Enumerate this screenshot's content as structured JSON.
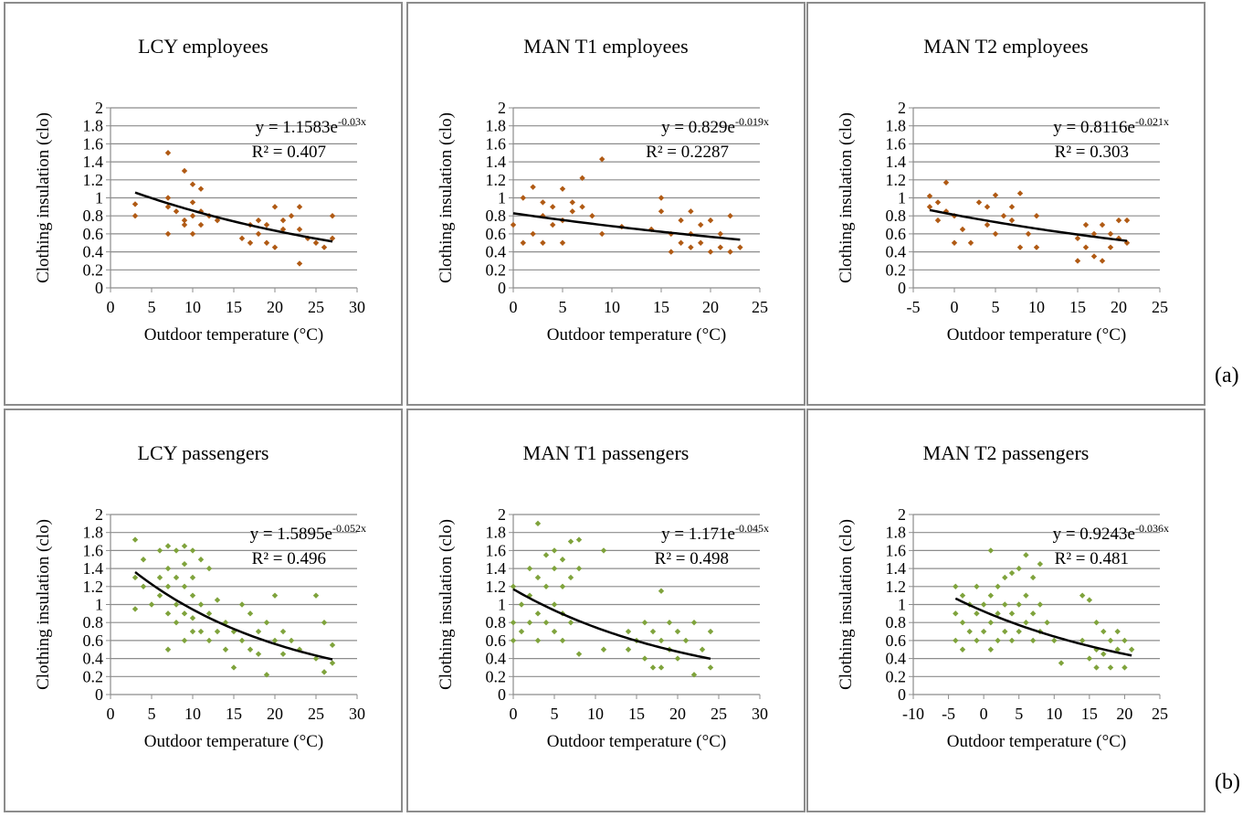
{
  "panel_labels": [
    "(a)",
    "(b)"
  ],
  "chart_data": [
    {
      "type": "scatter",
      "title": "LCY employees",
      "x_label": "Outdoor temperature (°C)",
      "y_label": "Clothing insulation (clo)",
      "color": "#b05a14",
      "grid": true,
      "xlim": [
        0,
        30
      ],
      "xticks": [
        0,
        5,
        10,
        15,
        20,
        25,
        30
      ],
      "ylim": [
        0,
        2
      ],
      "yticks": [
        0,
        0.2,
        0.4,
        0.6,
        0.8,
        1,
        1.2,
        1.4,
        1.6,
        1.8,
        2
      ],
      "x": [
        3,
        3,
        7,
        7,
        7,
        7,
        8,
        9,
        9,
        9,
        10,
        10,
        10,
        10,
        11,
        11,
        11,
        12,
        13,
        16,
        17,
        17,
        18,
        18,
        19,
        19,
        20,
        20,
        21,
        21,
        22,
        23,
        23,
        23,
        24,
        25,
        26,
        27,
        27
      ],
      "values": [
        0.93,
        0.8,
        1.5,
        1.0,
        0.6,
        0.9,
        0.85,
        1.3,
        0.75,
        0.7,
        1.15,
        0.95,
        0.8,
        0.6,
        1.1,
        0.85,
        0.7,
        0.8,
        0.75,
        0.55,
        0.7,
        0.5,
        0.75,
        0.6,
        0.5,
        0.7,
        0.9,
        0.45,
        0.75,
        0.65,
        0.8,
        0.9,
        0.65,
        0.27,
        0.55,
        0.5,
        0.45,
        0.8,
        0.55
      ],
      "trendline": {
        "a": 1.1583,
        "b": -0.03,
        "x_range": [
          3,
          27
        ],
        "equation": "y = 1.1583e",
        "exponent": "-0.03x",
        "r_squared": "R² = 0.407"
      }
    },
    {
      "type": "scatter",
      "title": "MAN T1 employees",
      "x_label": "Outdoor temperature (°C)",
      "y_label": "Clothing insulation (clo)",
      "color": "#b05a14",
      "grid": true,
      "xlim": [
        0,
        25
      ],
      "xticks": [
        0,
        5,
        10,
        15,
        20,
        25
      ],
      "ylim": [
        0,
        2
      ],
      "yticks": [
        0,
        0.2,
        0.4,
        0.6,
        0.8,
        1,
        1.2,
        1.4,
        1.6,
        1.8,
        2
      ],
      "x": [
        0,
        1,
        1,
        2,
        2,
        3,
        3,
        3,
        4,
        4,
        5,
        5,
        5,
        6,
        6,
        7,
        7,
        8,
        9,
        9,
        11,
        14,
        15,
        15,
        16,
        16,
        17,
        17,
        18,
        18,
        18,
        19,
        19,
        20,
        20,
        21,
        21,
        22,
        22,
        23
      ],
      "values": [
        0.7,
        1.0,
        0.5,
        1.12,
        0.6,
        0.95,
        0.8,
        0.5,
        0.9,
        0.7,
        1.1,
        0.75,
        0.5,
        0.95,
        0.85,
        1.22,
        0.9,
        0.8,
        1.43,
        0.6,
        0.68,
        0.65,
        1.0,
        0.85,
        0.6,
        0.4,
        0.75,
        0.5,
        0.85,
        0.6,
        0.45,
        0.7,
        0.5,
        0.75,
        0.4,
        0.6,
        0.45,
        0.8,
        0.4,
        0.45
      ],
      "trendline": {
        "a": 0.829,
        "b": -0.019,
        "x_range": [
          0,
          23
        ],
        "equation": "y = 0.829e",
        "exponent": "-0.019x",
        "r_squared": "R² = 0.2287"
      }
    },
    {
      "type": "scatter",
      "title": "MAN T2 employees",
      "x_label": "Outdoor temperature (°C)",
      "y_label": "Clothing insulation (clo)",
      "color": "#b05a14",
      "grid": true,
      "xlim": [
        -5,
        25
      ],
      "xticks": [
        -5,
        0,
        5,
        10,
        15,
        20,
        25
      ],
      "ylim": [
        0,
        2
      ],
      "yticks": [
        0,
        0.2,
        0.4,
        0.6,
        0.8,
        1,
        1.2,
        1.4,
        1.6,
        1.8,
        2
      ],
      "x": [
        -3,
        -3,
        -2,
        -2,
        -1,
        -1,
        0,
        0,
        1,
        2,
        3,
        4,
        4,
        5,
        5,
        6,
        7,
        7,
        8,
        8,
        9,
        10,
        10,
        15,
        15,
        16,
        16,
        17,
        17,
        18,
        18,
        19,
        19,
        20,
        20,
        21,
        21
      ],
      "values": [
        1.02,
        0.9,
        0.95,
        0.75,
        1.17,
        0.85,
        0.8,
        0.5,
        0.65,
        0.5,
        0.95,
        0.9,
        0.7,
        1.03,
        0.6,
        0.8,
        0.9,
        0.75,
        1.05,
        0.45,
        0.6,
        0.8,
        0.45,
        0.55,
        0.3,
        0.7,
        0.45,
        0.6,
        0.35,
        0.7,
        0.3,
        0.6,
        0.45,
        0.75,
        0.55,
        0.5,
        0.75
      ],
      "trendline": {
        "a": 0.8116,
        "b": -0.021,
        "x_range": [
          -3,
          21
        ],
        "equation": "y = 0.8116e",
        "exponent": "-0.021x",
        "r_squared": "R² = 0.303"
      }
    },
    {
      "type": "scatter",
      "title": "LCY passengers",
      "x_label": "Outdoor temperature (°C)",
      "y_label": "Clothing insulation (clo)",
      "color": "#7fa33c",
      "grid": true,
      "xlim": [
        0,
        30
      ],
      "xticks": [
        0,
        5,
        10,
        15,
        20,
        25,
        30
      ],
      "ylim": [
        0,
        2
      ],
      "yticks": [
        0,
        0.2,
        0.4,
        0.6,
        0.8,
        1,
        1.2,
        1.4,
        1.6,
        1.8,
        2
      ],
      "x": [
        3,
        3,
        3,
        4,
        4,
        5,
        6,
        6,
        6,
        7,
        7,
        7,
        7,
        7,
        8,
        8,
        8,
        8,
        9,
        9,
        9,
        9,
        9,
        10,
        10,
        10,
        10,
        10,
        11,
        11,
        11,
        12,
        12,
        12,
        13,
        13,
        14,
        14,
        15,
        15,
        16,
        16,
        17,
        17,
        18,
        18,
        19,
        19,
        20,
        20,
        21,
        21,
        22,
        23,
        25,
        25,
        26,
        26,
        27,
        27
      ],
      "values": [
        1.72,
        1.3,
        0.95,
        1.5,
        1.2,
        1.0,
        1.6,
        1.3,
        1.1,
        1.65,
        1.4,
        1.2,
        0.9,
        0.5,
        1.6,
        1.3,
        1.0,
        0.8,
        1.65,
        1.45,
        1.2,
        0.9,
        0.6,
        1.6,
        1.3,
        1.1,
        0.85,
        0.7,
        1.5,
        1.0,
        0.7,
        1.4,
        0.9,
        0.6,
        1.05,
        0.7,
        0.8,
        0.5,
        0.7,
        0.3,
        1.0,
        0.6,
        0.9,
        0.5,
        0.7,
        0.45,
        0.8,
        0.22,
        1.1,
        0.6,
        0.7,
        0.45,
        0.6,
        0.5,
        1.1,
        0.4,
        0.8,
        0.25,
        0.55,
        0.35
      ],
      "trendline": {
        "a": 1.5895,
        "b": -0.052,
        "x_range": [
          3,
          27
        ],
        "equation": "y = 1.5895e",
        "exponent": "-0.052x",
        "r_squared": "R² = 0.496"
      }
    },
    {
      "type": "scatter",
      "title": "MAN T1 passengers",
      "x_label": "Outdoor temperature (°C)",
      "y_label": "Clothing insulation (clo)",
      "color": "#7fa33c",
      "grid": true,
      "xlim": [
        0,
        30
      ],
      "xticks": [
        0,
        5,
        10,
        15,
        20,
        25,
        30
      ],
      "ylim": [
        0,
        2
      ],
      "yticks": [
        0,
        0.2,
        0.4,
        0.6,
        0.8,
        1,
        1.2,
        1.4,
        1.6,
        1.8,
        2
      ],
      "x": [
        0,
        0,
        0,
        1,
        1,
        2,
        2,
        2,
        3,
        3,
        3,
        3,
        4,
        4,
        4,
        5,
        5,
        5,
        5,
        6,
        6,
        6,
        6,
        7,
        7,
        7,
        8,
        8,
        8,
        11,
        11,
        14,
        14,
        15,
        16,
        16,
        17,
        17,
        18,
        18,
        18,
        19,
        19,
        20,
        20,
        21,
        22,
        22,
        23,
        24,
        24
      ],
      "values": [
        1.2,
        0.8,
        0.6,
        1.0,
        0.7,
        1.4,
        1.1,
        0.8,
        1.9,
        1.3,
        0.9,
        0.6,
        1.55,
        1.2,
        0.8,
        1.6,
        1.4,
        1.0,
        0.7,
        1.5,
        1.2,
        0.9,
        0.6,
        1.7,
        1.3,
        0.8,
        1.72,
        1.4,
        0.45,
        1.6,
        0.5,
        0.7,
        0.5,
        0.6,
        0.8,
        0.4,
        0.7,
        0.3,
        1.15,
        0.6,
        0.3,
        0.8,
        0.5,
        0.7,
        0.4,
        0.6,
        0.8,
        0.22,
        0.5,
        0.7,
        0.3
      ],
      "trendline": {
        "a": 1.171,
        "b": -0.045,
        "x_range": [
          0,
          24
        ],
        "equation": "y = 1.171e",
        "exponent": "-0.045x",
        "r_squared": "R² = 0.498"
      }
    },
    {
      "type": "scatter",
      "title": "MAN T2 passengers",
      "x_label": "Outdoor temperature (°C)",
      "y_label": "Clothing insulation (clo)",
      "color": "#7fa33c",
      "grid": true,
      "xlim": [
        -10,
        25
      ],
      "xticks": [
        -10,
        -5,
        0,
        5,
        10,
        15,
        20,
        25
      ],
      "ylim": [
        0,
        2
      ],
      "yticks": [
        0,
        0.2,
        0.4,
        0.6,
        0.8,
        1,
        1.2,
        1.4,
        1.6,
        1.8,
        2
      ],
      "x": [
        -4,
        -4,
        -4,
        -3,
        -3,
        -3,
        -2,
        -2,
        -1,
        -1,
        -1,
        0,
        0,
        1,
        1,
        1,
        1,
        2,
        2,
        2,
        3,
        3,
        3,
        4,
        4,
        4,
        5,
        5,
        5,
        6,
        6,
        6,
        7,
        7,
        7,
        8,
        8,
        8,
        9,
        10,
        11,
        14,
        14,
        15,
        15,
        16,
        16,
        16,
        17,
        17,
        18,
        18,
        19,
        19,
        20,
        20,
        21
      ],
      "values": [
        1.2,
        0.9,
        0.6,
        1.1,
        0.8,
        0.5,
        1.0,
        0.7,
        1.2,
        0.9,
        0.6,
        1.0,
        0.7,
        1.6,
        1.1,
        0.8,
        0.5,
        1.2,
        0.9,
        0.6,
        1.3,
        1.0,
        0.7,
        1.35,
        0.9,
        0.6,
        1.4,
        1.0,
        0.7,
        1.55,
        1.1,
        0.8,
        1.3,
        0.9,
        0.6,
        1.45,
        1.0,
        0.7,
        0.8,
        0.6,
        0.35,
        1.1,
        0.6,
        1.05,
        0.4,
        0.8,
        0.5,
        0.3,
        0.7,
        0.45,
        0.6,
        0.3,
        0.7,
        0.5,
        0.6,
        0.3,
        0.5
      ],
      "trendline": {
        "a": 0.9243,
        "b": -0.036,
        "x_range": [
          -4,
          21
        ],
        "equation": "y = 0.9243e",
        "exponent": "-0.036x",
        "r_squared": "R² = 0.481"
      }
    }
  ]
}
